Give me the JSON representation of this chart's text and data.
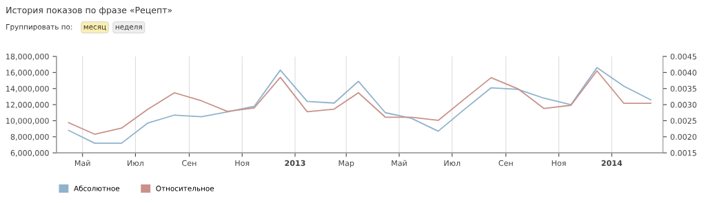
{
  "chart_data": {
    "type": "line",
    "title": "История показов по фразе «Рецепт»",
    "annotations": [
      "Группировать по:",
      "месяц",
      "неделя"
    ],
    "x": [
      "2012-04-15",
      "2012-05-15",
      "2012-06-15",
      "2012-07-15",
      "2012-08-15",
      "2012-09-15",
      "2012-10-15",
      "2012-11-15",
      "2012-12-15",
      "2013-01-15",
      "2013-02-15",
      "2013-03-15",
      "2013-04-15",
      "2013-05-15",
      "2013-06-15",
      "2013-07-15",
      "2013-08-15",
      "2013-09-15",
      "2013-10-15",
      "2013-11-15",
      "2013-12-15",
      "2014-01-15",
      "2014-02-15"
    ],
    "series": [
      {
        "name": "Абсолютное",
        "color": "#8fb3cc",
        "values": [
          8800000,
          7200000,
          7200000,
          9700000,
          10700000,
          10500000,
          11100000,
          11800000,
          16300000,
          12400000,
          12200000,
          14900000,
          11000000,
          10300000,
          8700000,
          11400000,
          14100000,
          13900000,
          12800000,
          12000000,
          16600000,
          14300000,
          12600000
        ]
      },
      {
        "name": "Относительное",
        "color": "#c8928b",
        "axis": "y2",
        "values": [
          0.00244,
          0.00208,
          0.00227,
          0.00285,
          0.00337,
          0.00312,
          0.00279,
          0.0029,
          0.00385,
          0.00278,
          0.00286,
          0.00337,
          0.00261,
          0.00261,
          0.00251,
          0.00317,
          0.00384,
          0.00349,
          0.00288,
          0.00298,
          0.00405,
          0.00304,
          0.00304
        ]
      }
    ],
    "xlim": [
      "2012-04-01",
      "2014-03-01"
    ],
    "xticks": [
      {
        "value": "2012-05-01",
        "label": "Май"
      },
      {
        "value": "2012-07-01",
        "label": "Июл"
      },
      {
        "value": "2012-09-01",
        "label": "Сен"
      },
      {
        "value": "2012-11-01",
        "label": "Ноя"
      },
      {
        "value": "2013-01-01",
        "label": "2013"
      },
      {
        "value": "2013-03-01",
        "label": "Мар"
      },
      {
        "value": "2013-05-01",
        "label": "Май"
      },
      {
        "value": "2013-07-01",
        "label": "Июл"
      },
      {
        "value": "2013-09-01",
        "label": "Сен"
      },
      {
        "value": "2013-11-01",
        "label": "Ноя"
      },
      {
        "value": "2014-01-01",
        "label": "2014"
      }
    ],
    "ylim": [
      6000000,
      18000000
    ],
    "yticks": [
      {
        "value": 6000000,
        "label": "6,000,000"
      },
      {
        "value": 8000000,
        "label": "8,000,000"
      },
      {
        "value": 10000000,
        "label": "10,000,000"
      },
      {
        "value": 12000000,
        "label": "12,000,000"
      },
      {
        "value": 14000000,
        "label": "14,000,000"
      },
      {
        "value": 16000000,
        "label": "16,000,000"
      },
      {
        "value": 18000000,
        "label": "18,000,000"
      }
    ],
    "y2lim": [
      0.0015,
      0.0045
    ],
    "y2ticks": [
      {
        "value": 0.0015,
        "label": "0.0015"
      },
      {
        "value": 0.002,
        "label": "0.0020"
      },
      {
        "value": 0.0025,
        "label": "0.0025"
      },
      {
        "value": 0.003,
        "label": "0.0030"
      },
      {
        "value": 0.0035,
        "label": "0.0035"
      },
      {
        "value": 0.004,
        "label": "0.0040"
      },
      {
        "value": 0.0045,
        "label": "0.0045"
      }
    ],
    "grid": "x",
    "legend": "bottom left",
    "marker": "none",
    "line_style": "solid"
  }
}
